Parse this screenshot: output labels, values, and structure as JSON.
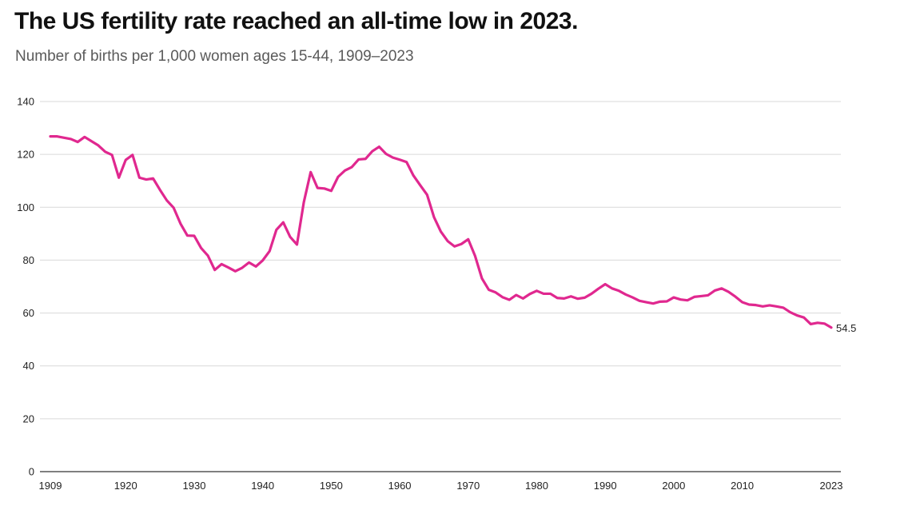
{
  "header": {
    "title": "The US fertility rate reached an all-time low in 2023.",
    "subtitle": "Number of births per 1,000 women ages 15-44, 1909–2023"
  },
  "colors": {
    "line": "#e0288f",
    "grid": "#d9d9d9",
    "axis": "#333333"
  },
  "chart_data": {
    "type": "line",
    "title": "The US fertility rate reached an all-time low in 2023.",
    "subtitle": "Number of births per 1,000 women ages 15-44, 1909–2023",
    "xlabel": "",
    "ylabel": "",
    "xlim": [
      1909,
      2023
    ],
    "ylim": [
      0,
      140
    ],
    "grid": true,
    "legend": "none",
    "y_ticks": [
      "0",
      "20",
      "40",
      "60",
      "80",
      "100",
      "120",
      "140"
    ],
    "x_ticks": [
      "1909",
      "1920",
      "1930",
      "1940",
      "1950",
      "1960",
      "1970",
      "1980",
      "1990",
      "2000",
      "2010",
      "2023"
    ],
    "end_label": "54.5",
    "series": [
      {
        "x": [
          1909,
          1910,
          1911,
          1912,
          1913,
          1914,
          1915,
          1916,
          1917,
          1918,
          1919,
          1920,
          1921,
          1922,
          1923,
          1924,
          1925,
          1926,
          1927,
          1928,
          1929,
          1930,
          1931,
          1932,
          1933,
          1934,
          1935,
          1936,
          1937,
          1938,
          1939,
          1940,
          1941,
          1942,
          1943,
          1944,
          1945,
          1946,
          1947,
          1948,
          1949,
          1950,
          1951,
          1952,
          1953,
          1954,
          1955,
          1956,
          1957,
          1958,
          1959,
          1960,
          1961,
          1962,
          1963,
          1964,
          1965,
          1966,
          1967,
          1968,
          1969,
          1970,
          1971,
          1972,
          1973,
          1974,
          1975,
          1976,
          1977,
          1978,
          1979,
          1980,
          1981,
          1982,
          1983,
          1984,
          1985,
          1986,
          1987,
          1988,
          1989,
          1990,
          1991,
          1992,
          1993,
          1994,
          1995,
          1996,
          1997,
          1998,
          1999,
          2000,
          2001,
          2002,
          2003,
          2004,
          2005,
          2006,
          2007,
          2008,
          2009,
          2010,
          2011,
          2012,
          2013,
          2014,
          2015,
          2016,
          2017,
          2018,
          2019,
          2020,
          2021,
          2022,
          2023
        ],
        "values": [
          126.8,
          126.8,
          126.3,
          125.8,
          124.7,
          126.6,
          125.0,
          123.4,
          121.0,
          119.8,
          111.2,
          117.9,
          119.8,
          111.2,
          110.5,
          110.9,
          106.6,
          102.6,
          99.8,
          93.8,
          89.3,
          89.2,
          84.6,
          81.7,
          76.3,
          78.5,
          77.2,
          75.8,
          77.1,
          79.1,
          77.6,
          79.9,
          83.4,
          91.5,
          94.3,
          88.8,
          85.9,
          101.9,
          113.3,
          107.3,
          107.1,
          106.2,
          111.5,
          113.9,
          115.2,
          118.1,
          118.3,
          121.2,
          122.9,
          120.2,
          118.8,
          118.0,
          117.1,
          112.0,
          108.3,
          104.7,
          96.3,
          90.8,
          87.2,
          85.2,
          86.1,
          87.9,
          81.6,
          73.1,
          68.8,
          67.8,
          66.0,
          65.0,
          66.8,
          65.5,
          67.2,
          68.4,
          67.3,
          67.3,
          65.7,
          65.5,
          66.3,
          65.4,
          65.8,
          67.3,
          69.2,
          70.9,
          69.3,
          68.4,
          67.0,
          65.9,
          64.6,
          64.1,
          63.6,
          64.3,
          64.4,
          65.9,
          65.1,
          64.8,
          66.1,
          66.4,
          66.7,
          68.5,
          69.3,
          68.0,
          66.2,
          64.1,
          63.2,
          63.0,
          62.5,
          62.9,
          62.5,
          62.0,
          60.3,
          59.1,
          58.3,
          55.8,
          56.3,
          56.0,
          54.5
        ]
      }
    ]
  }
}
